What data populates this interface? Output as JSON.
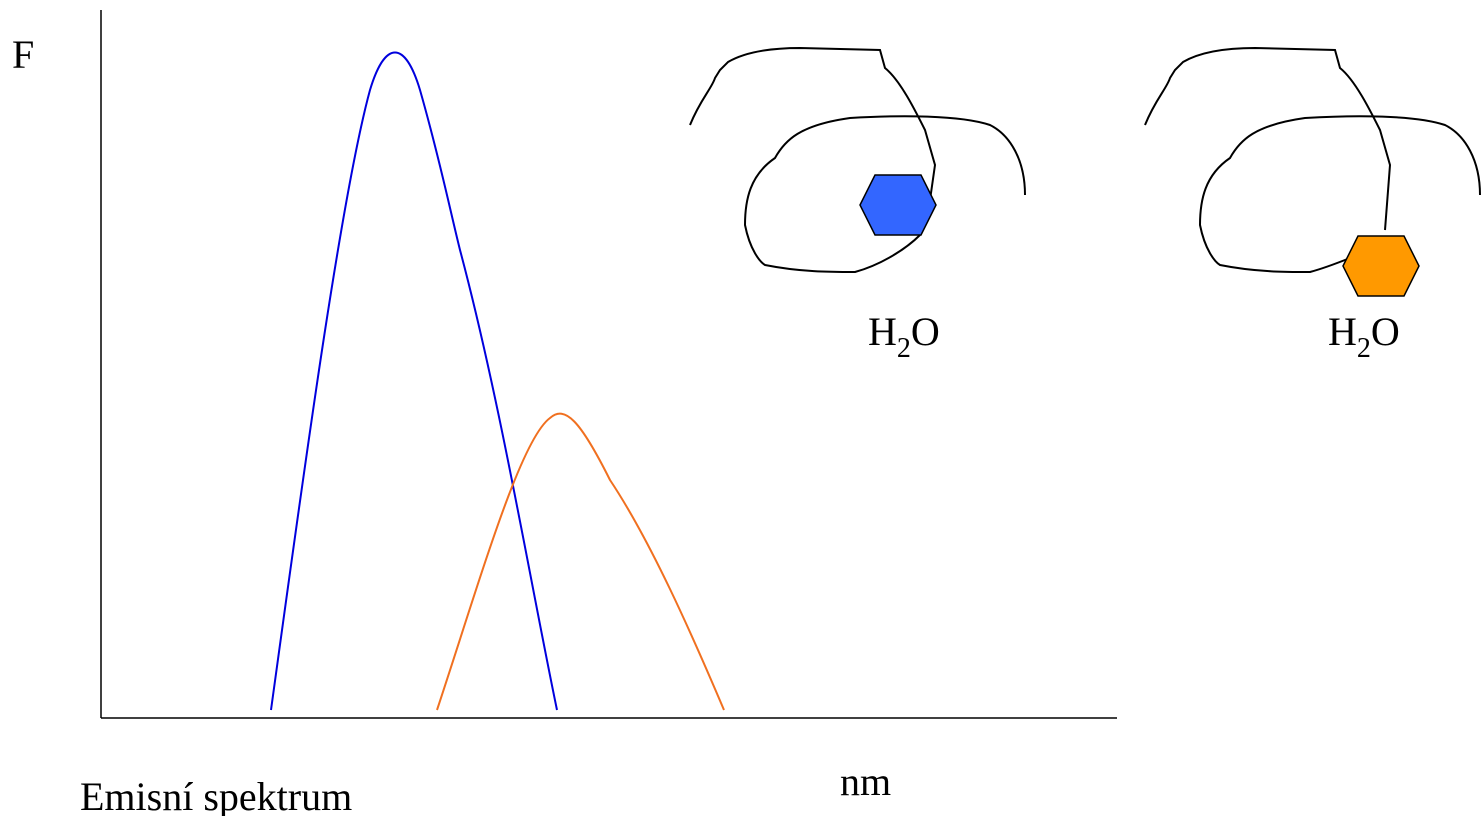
{
  "axis": {
    "y_label": "F",
    "x_label": "nm"
  },
  "caption": "Emisní spektrum",
  "labels": [
    {
      "main": "H",
      "sub": "2",
      "rest": "O"
    },
    {
      "main": "H",
      "sub": "2",
      "rest": "O"
    }
  ]
}
